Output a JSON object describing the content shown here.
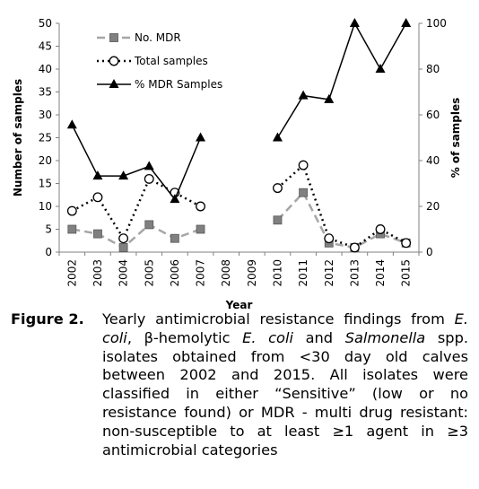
{
  "chart_data": {
    "type": "line",
    "x": [
      "2002",
      "2003",
      "2004",
      "2005",
      "2006",
      "2007",
      "2008",
      "2009",
      "2010",
      "2011",
      "2012",
      "2013",
      "2014",
      "2015"
    ],
    "xlabel": "Year",
    "ylabel": "Number of samples",
    "y2label": "% of samples",
    "ylim": [
      0,
      50
    ],
    "yticks": [
      0,
      5,
      10,
      15,
      20,
      25,
      30,
      35,
      40,
      45,
      50
    ],
    "y2lim": [
      0,
      100
    ],
    "y2ticks": [
      0,
      20,
      40,
      60,
      80,
      100
    ],
    "grid": false,
    "legend_position": "top-left",
    "series": [
      {
        "name": "No. MDR",
        "axis": "left",
        "style": "dashed-square",
        "values": [
          5,
          4,
          1,
          6,
          3,
          5,
          null,
          null,
          7,
          13,
          2,
          1,
          4,
          2
        ]
      },
      {
        "name": "Total samples",
        "axis": "left",
        "style": "dotted-circle",
        "values": [
          9,
          12,
          3,
          16,
          13,
          10,
          null,
          null,
          14,
          19,
          3,
          1,
          5,
          2
        ]
      },
      {
        "name": "% MDR Samples",
        "axis": "right",
        "style": "solid-triangle",
        "values": [
          55.6,
          33.3,
          33.3,
          37.5,
          23.1,
          50,
          null,
          null,
          50,
          68.4,
          66.7,
          100,
          80,
          100
        ]
      }
    ]
  },
  "caption": {
    "label": "Figure 2.",
    "p1": "Yearly antimicrobial resistance findings from ",
    "ecoli1": "E. coli",
    "p2": ", β-hemolytic ",
    "ecoli2": "E. coli",
    "p3": " and ",
    "salmonella": "Salmonella",
    "p4": " spp. isolates obtained from <30 day old calves between 2002 and 2015. All isolates were classified in either “Sensitive” (low or no resistance found) or MDR - multi drug resistant: non-susceptible to at least ≥1 agent in ≥3 antimicrobial categories"
  }
}
